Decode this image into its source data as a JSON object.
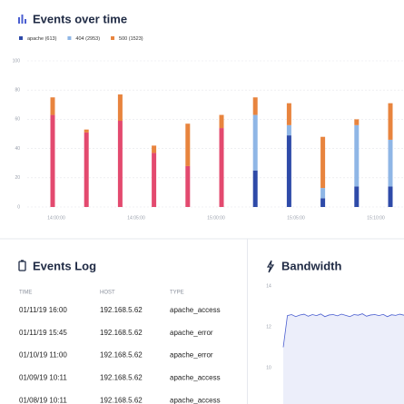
{
  "chart_data": [
    {
      "type": "stacked_bar",
      "title": "Events over time",
      "ylim": [
        0,
        100
      ],
      "yticks": [
        0,
        20,
        40,
        60,
        80,
        100
      ],
      "grid": true,
      "xtick_labels": [
        "14:00:00",
        "14:05:00",
        "15:00:00",
        "15:05:00",
        "15:10:00"
      ],
      "series": [
        {
          "name": "apache (613)",
          "color": "#2e4aa8",
          "values": [
            null,
            null,
            null,
            null,
            null,
            null,
            25,
            49,
            6,
            14,
            14
          ]
        },
        {
          "name": "404 (2953)",
          "color": "#8fb6e6",
          "values": [
            null,
            null,
            null,
            null,
            null,
            null,
            38,
            7,
            7,
            42,
            32
          ]
        },
        {
          "color": "#e34a6f",
          "values": [
            63,
            51,
            59,
            37,
            28,
            54,
            null,
            null,
            null,
            null,
            null
          ]
        },
        {
          "name": "500 (1523)",
          "color": "#e8843e",
          "values": [
            12,
            2,
            18,
            5,
            29,
            9,
            12,
            15,
            35,
            4,
            25
          ]
        }
      ]
    },
    {
      "type": "area",
      "title": "Bandwidth",
      "ylim": [
        8,
        14.5
      ],
      "yticks": [
        10,
        12,
        14
      ],
      "color": "#4a5ed0",
      "fill": "#eceefa",
      "values": [
        11.0,
        12.55,
        12.6,
        12.5,
        12.58,
        12.62,
        12.52,
        12.6,
        12.55,
        12.63,
        12.5,
        12.58,
        12.6,
        12.54,
        12.62,
        12.56,
        12.5,
        12.6,
        12.57,
        12.64,
        12.52,
        12.58,
        12.6,
        12.55,
        12.61,
        12.5,
        12.59,
        12.56,
        12.62,
        12.57
      ]
    }
  ],
  "events_log": {
    "title": "Events Log",
    "columns": [
      "TIME",
      "HOST",
      "TYPE"
    ],
    "rows": [
      [
        "01/11/19 16:00",
        "192.168.5.62",
        "apache_access"
      ],
      [
        "01/11/19 15:45",
        "192.168.5.62",
        "apache_error"
      ],
      [
        "01/10/19 11:00",
        "192.168.5.62",
        "apache_error"
      ],
      [
        "01/09/19 10:11",
        "192.168.5.62",
        "apache_access"
      ],
      [
        "01/08/19 10:11",
        "192.168.5.62",
        "apache_access"
      ]
    ]
  }
}
